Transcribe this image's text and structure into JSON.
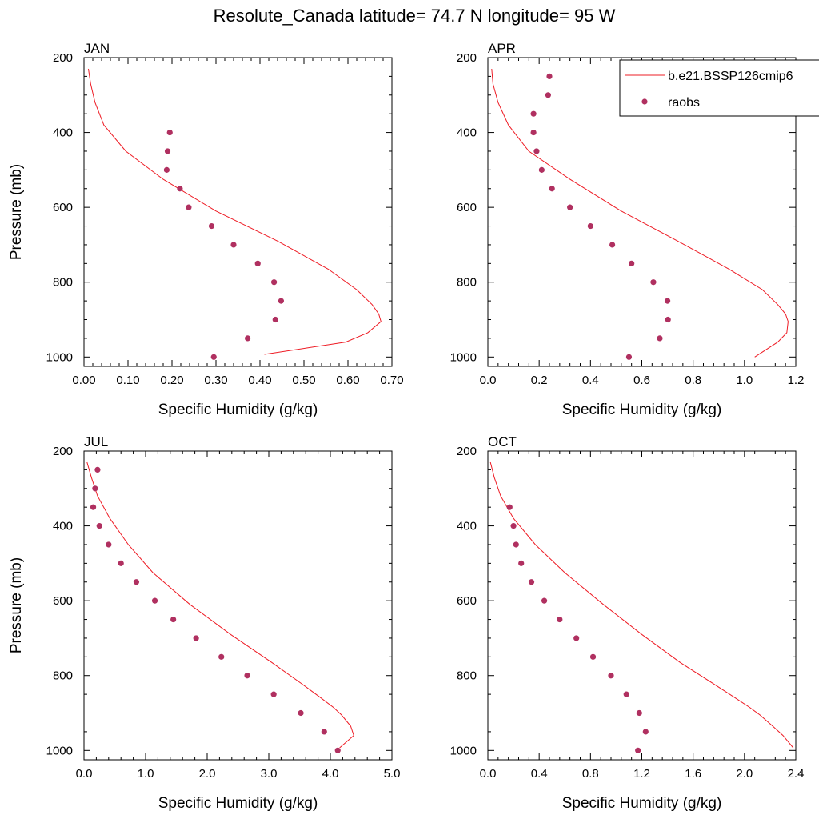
{
  "figure": {
    "title": "Resolute_Canada  latitude= 74.7 N longitude= 95 W"
  },
  "colors": {
    "model": "#ee1c25",
    "obs": "#b03060"
  },
  "legend": {
    "placement": "top-right of APR panel",
    "items": [
      {
        "label": "b.e21.BSSP126cmip6",
        "style": "line"
      },
      {
        "label": "raobs",
        "style": "marker"
      }
    ]
  },
  "chart_data": [
    {
      "type": "line",
      "panel_label": "JAN",
      "xlabel": "Specific Humidity (g/kg)",
      "ylabel": "Pressure (mb)",
      "xlim": [
        0,
        0.7
      ],
      "ylim": [
        200,
        1025
      ],
      "y_reversed": true,
      "xticks": [
        0,
        0.1,
        0.2,
        0.3,
        0.4,
        0.5,
        0.6,
        0.7
      ],
      "xtick_labels": [
        "0.00",
        "0.10",
        "0.20",
        "0.30",
        "0.40",
        "0.50",
        "0.60",
        "0.70"
      ],
      "yticks": [
        200,
        400,
        600,
        800,
        1000
      ],
      "ytick_labels": [
        "200",
        "400",
        "600",
        "800",
        "1000"
      ],
      "series": [
        {
          "name": "b.e21.BSSP126cmip6",
          "kind": "line",
          "pressure": [
            230,
            270,
            320,
            380,
            450,
            525,
            610,
            690,
            765,
            820,
            860,
            885,
            905,
            935,
            960,
            993
          ],
          "q": [
            0.01,
            0.015,
            0.025,
            0.045,
            0.095,
            0.18,
            0.3,
            0.44,
            0.555,
            0.62,
            0.655,
            0.67,
            0.675,
            0.645,
            0.595,
            0.41
          ]
        },
        {
          "name": "raobs",
          "kind": "marker",
          "pressure": [
            400,
            450,
            500,
            550,
            600,
            650,
            700,
            750,
            800,
            850,
            900,
            950,
            1000
          ],
          "q": [
            0.195,
            0.19,
            0.188,
            0.218,
            0.238,
            0.29,
            0.34,
            0.395,
            0.432,
            0.448,
            0.435,
            0.372,
            0.295
          ]
        }
      ]
    },
    {
      "type": "line",
      "panel_label": "APR",
      "xlabel": "Specific Humidity (g/kg)",
      "ylabel": "",
      "xlim": [
        0,
        1.2
      ],
      "ylim": [
        200,
        1025
      ],
      "y_reversed": true,
      "xticks": [
        0,
        0.2,
        0.4,
        0.6,
        0.8,
        1.0,
        1.2
      ],
      "xtick_labels": [
        "0.0",
        "0.2",
        "0.4",
        "0.6",
        "0.8",
        "1.0",
        "1.2"
      ],
      "yticks": [
        200,
        400,
        600,
        800,
        1000
      ],
      "ytick_labels": [
        "200",
        "400",
        "600",
        "800",
        "1000"
      ],
      "series": [
        {
          "name": "b.e21.BSSP126cmip6",
          "kind": "line",
          "pressure": [
            230,
            270,
            320,
            380,
            450,
            525,
            610,
            690,
            765,
            820,
            860,
            885,
            905,
            935,
            960,
            1000
          ],
          "q": [
            0.015,
            0.02,
            0.04,
            0.08,
            0.16,
            0.32,
            0.52,
            0.74,
            0.94,
            1.07,
            1.13,
            1.16,
            1.17,
            1.165,
            1.13,
            1.04
          ]
        },
        {
          "name": "raobs",
          "kind": "marker",
          "pressure": [
            250,
            300,
            350,
            400,
            450,
            500,
            550,
            600,
            650,
            700,
            750,
            800,
            850,
            900,
            950,
            1000
          ],
          "q": [
            0.24,
            0.235,
            0.178,
            0.178,
            0.19,
            0.21,
            0.25,
            0.32,
            0.4,
            0.485,
            0.56,
            0.645,
            0.7,
            0.702,
            0.67,
            0.55
          ]
        }
      ]
    },
    {
      "type": "line",
      "panel_label": "JUL",
      "xlabel": "Specific Humidity (g/kg)",
      "ylabel": "Pressure (mb)",
      "xlim": [
        0,
        5.0
      ],
      "ylim": [
        200,
        1025
      ],
      "y_reversed": true,
      "xticks": [
        0,
        1,
        2,
        3,
        4,
        5
      ],
      "xtick_labels": [
        "0.0",
        "1.0",
        "2.0",
        "3.0",
        "4.0",
        "5.0"
      ],
      "yticks": [
        200,
        400,
        600,
        800,
        1000
      ],
      "ytick_labels": [
        "200",
        "400",
        "600",
        "800",
        "1000"
      ],
      "series": [
        {
          "name": "b.e21.BSSP126cmip6",
          "kind": "line",
          "pressure": [
            230,
            270,
            320,
            380,
            450,
            525,
            610,
            690,
            765,
            820,
            860,
            885,
            905,
            935,
            960,
            993
          ],
          "q": [
            0.05,
            0.12,
            0.22,
            0.42,
            0.72,
            1.12,
            1.72,
            2.38,
            3.05,
            3.52,
            3.85,
            4.05,
            4.18,
            4.33,
            4.38,
            4.15
          ]
        },
        {
          "name": "raobs",
          "kind": "marker",
          "pressure": [
            250,
            300,
            350,
            400,
            450,
            500,
            550,
            600,
            650,
            700,
            750,
            800,
            850,
            900,
            950,
            1000
          ],
          "q": [
            0.22,
            0.18,
            0.15,
            0.25,
            0.4,
            0.6,
            0.85,
            1.15,
            1.45,
            1.82,
            2.23,
            2.65,
            3.08,
            3.52,
            3.9,
            4.12
          ]
        }
      ]
    },
    {
      "type": "line",
      "panel_label": "OCT",
      "xlabel": "Specific Humidity (g/kg)",
      "ylabel": "",
      "xlim": [
        0,
        2.4
      ],
      "ylim": [
        200,
        1025
      ],
      "y_reversed": true,
      "xticks": [
        0,
        0.4,
        0.8,
        1.2,
        1.6,
        2.0,
        2.4
      ],
      "xtick_labels": [
        "0.0",
        "0.4",
        "0.8",
        "1.2",
        "1.6",
        "2.0",
        "2.4"
      ],
      "yticks": [
        200,
        400,
        600,
        800,
        1000
      ],
      "ytick_labels": [
        "200",
        "400",
        "600",
        "800",
        "1000"
      ],
      "series": [
        {
          "name": "b.e21.BSSP126cmip6",
          "kind": "line",
          "pressure": [
            230,
            270,
            320,
            380,
            450,
            525,
            610,
            690,
            765,
            820,
            860,
            885,
            905,
            935,
            960,
            993
          ],
          "q": [
            0.02,
            0.05,
            0.1,
            0.2,
            0.37,
            0.6,
            0.9,
            1.2,
            1.5,
            1.75,
            1.93,
            2.04,
            2.12,
            2.22,
            2.3,
            2.38
          ]
        },
        {
          "name": "raobs",
          "kind": "marker",
          "pressure": [
            350,
            400,
            450,
            500,
            550,
            600,
            650,
            700,
            750,
            800,
            850,
            900,
            950,
            1000
          ],
          "q": [
            0.17,
            0.2,
            0.22,
            0.26,
            0.34,
            0.44,
            0.56,
            0.69,
            0.82,
            0.96,
            1.08,
            1.18,
            1.23,
            1.17
          ]
        }
      ]
    }
  ]
}
